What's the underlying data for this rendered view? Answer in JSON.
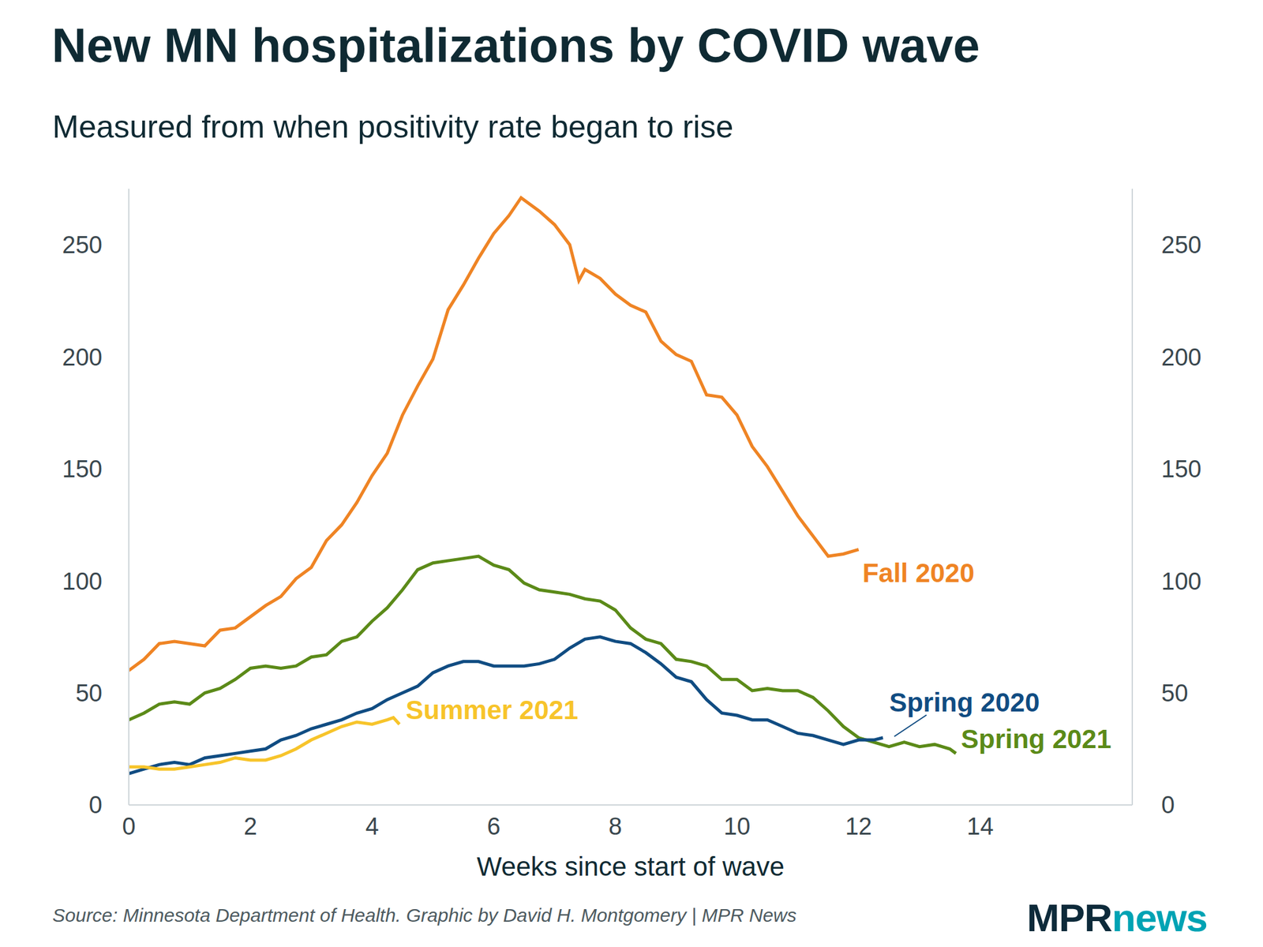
{
  "chart_data": {
    "type": "line",
    "title": "New MN hospitalizations by COVID wave",
    "subtitle": "Measured from when positivity rate began to rise",
    "x_label": "Weeks since start of wave",
    "source": "Source: Minnesota Department of Health. Graphic by David H. Montgomery | MPR News",
    "logo": [
      "MPR",
      "news"
    ],
    "xlim": [
      0,
      16.5
    ],
    "xticks": [
      0,
      2,
      4,
      6,
      8,
      10,
      12,
      14
    ],
    "ylim": [
      0,
      275
    ],
    "yticks": [
      0,
      50,
      100,
      150,
      200,
      250
    ],
    "y2lim": [
      0,
      275
    ],
    "y2ticks": [
      0,
      50,
      100,
      150,
      200,
      250
    ],
    "grid": false,
    "series": [
      {
        "name": "Fall 2020",
        "color": "#ef8424",
        "x": [
          0,
          0.25,
          0.5,
          0.75,
          1,
          1.25,
          1.5,
          1.75,
          2,
          2.25,
          2.5,
          2.75,
          3,
          3.25,
          3.5,
          3.75,
          4,
          4.25,
          4.5,
          4.75,
          5,
          5.25,
          5.5,
          5.75,
          6,
          6.25,
          6.45,
          6.75,
          7,
          7.25,
          7.4,
          7.5,
          7.75,
          8,
          8.25,
          8.5,
          8.75,
          9,
          9.25,
          9.5,
          9.75,
          10,
          10.25,
          10.5,
          10.75,
          11,
          11.25,
          11.5,
          11.75,
          12
        ],
        "values": [
          60,
          65,
          72,
          73,
          72,
          71,
          78,
          79,
          84,
          89,
          93,
          101,
          106,
          118,
          125,
          135,
          147,
          157,
          174,
          187,
          199,
          221,
          232,
          244,
          255,
          263,
          271,
          265,
          259,
          250,
          234,
          239,
          235,
          228,
          223,
          220,
          207,
          201,
          198,
          183,
          182,
          174,
          160,
          151,
          140,
          129,
          120,
          111,
          112,
          114
        ]
      },
      {
        "name": "Spring 2021",
        "color": "#5b8a18",
        "x": [
          0,
          0.25,
          0.5,
          0.75,
          1,
          1.25,
          1.5,
          1.75,
          2,
          2.25,
          2.5,
          2.75,
          3,
          3.25,
          3.5,
          3.75,
          4,
          4.25,
          4.5,
          4.75,
          5,
          5.25,
          5.5,
          5.75,
          6,
          6.25,
          6.5,
          6.75,
          7,
          7.25,
          7.5,
          7.75,
          8,
          8.25,
          8.5,
          8.75,
          9,
          9.25,
          9.5,
          9.75,
          10,
          10.25,
          10.5,
          10.75,
          11,
          11.25,
          11.5,
          11.75,
          12,
          12.25,
          12.5,
          12.75,
          13,
          13.25,
          13.5,
          13.6
        ],
        "values": [
          38,
          41,
          45,
          46,
          45,
          50,
          52,
          56,
          61,
          62,
          61,
          62,
          66,
          67,
          73,
          75,
          82,
          88,
          96,
          105,
          108,
          109,
          110,
          111,
          107,
          105,
          99,
          96,
          95,
          94,
          92,
          91,
          87,
          79,
          74,
          72,
          65,
          64,
          62,
          56,
          56,
          51,
          52,
          51,
          51,
          48,
          42,
          35,
          30,
          28,
          26,
          28,
          26,
          27,
          25,
          23
        ]
      },
      {
        "name": "Spring 2020",
        "color": "#104c82",
        "x": [
          0,
          0.25,
          0.5,
          0.75,
          1,
          1.25,
          1.5,
          1.75,
          2,
          2.25,
          2.5,
          2.75,
          3,
          3.25,
          3.5,
          3.75,
          4,
          4.25,
          4.5,
          4.75,
          5,
          5.25,
          5.5,
          5.75,
          6,
          6.25,
          6.5,
          6.75,
          7,
          7.25,
          7.5,
          7.75,
          8,
          8.25,
          8.5,
          8.75,
          9,
          9.25,
          9.5,
          9.75,
          10,
          10.25,
          10.5,
          10.75,
          11,
          11.25,
          11.5,
          11.75,
          12,
          12.25,
          12.4
        ],
        "values": [
          14,
          16,
          18,
          19,
          18,
          21,
          22,
          23,
          24,
          25,
          29,
          31,
          34,
          36,
          38,
          41,
          43,
          47,
          50,
          53,
          59,
          62,
          64,
          64,
          62,
          62,
          62,
          63,
          65,
          70,
          74,
          75,
          73,
          72,
          68,
          63,
          57,
          55,
          47,
          41,
          40,
          38,
          38,
          35,
          32,
          31,
          29,
          27,
          29,
          29,
          30
        ]
      },
      {
        "name": "Summer 2021",
        "color": "#f7c42a",
        "x": [
          0,
          0.25,
          0.5,
          0.75,
          1,
          1.25,
          1.5,
          1.75,
          2,
          2.25,
          2.5,
          2.75,
          3,
          3.25,
          3.5,
          3.75,
          4,
          4.25,
          4.35,
          4.45
        ],
        "values": [
          17,
          17,
          16,
          16,
          17,
          18,
          19,
          21,
          20,
          20,
          22,
          25,
          29,
          32,
          35,
          37,
          36,
          38,
          39,
          36
        ]
      }
    ]
  }
}
